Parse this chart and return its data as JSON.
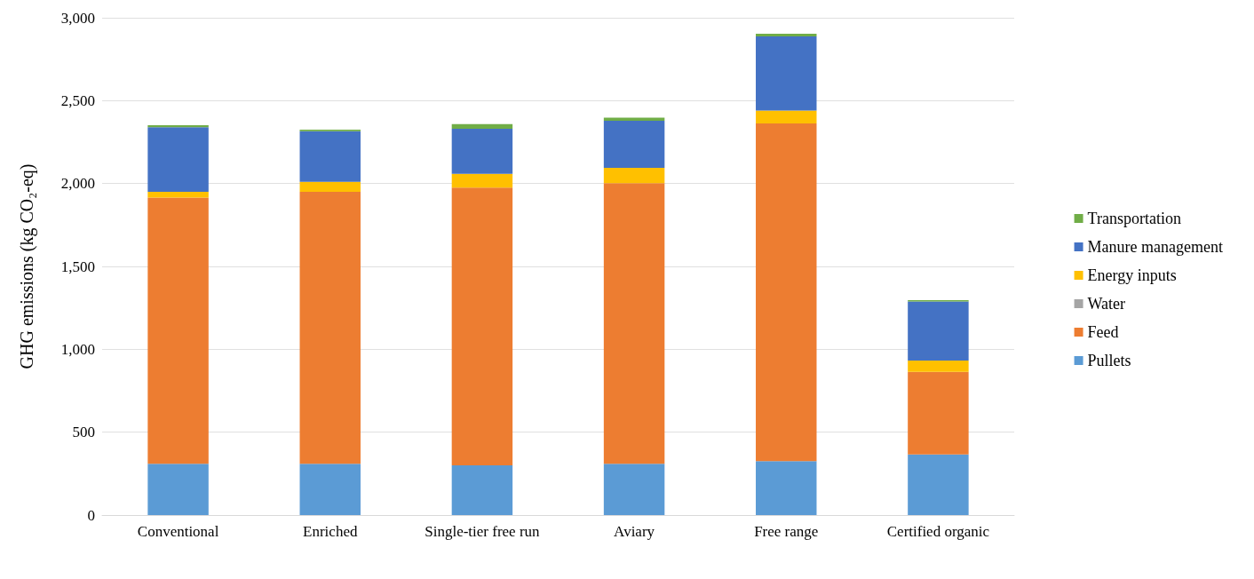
{
  "chart_data": {
    "type": "bar",
    "stacked": true,
    "ylabel": "GHG emissions (kg CO₂-eq)",
    "categories": [
      "Conventional",
      "Enriched",
      "Single-tier free run",
      "Aviary",
      "Free range",
      "Certified organic"
    ],
    "series": [
      {
        "name": "Pullets",
        "color": "#5b9bd5",
        "values": [
          310,
          310,
          300,
          310,
          325,
          365
        ]
      },
      {
        "name": "Feed",
        "color": "#ed7d31",
        "values": [
          1605,
          1640,
          1675,
          1692,
          2037,
          499
        ]
      },
      {
        "name": "Water",
        "color": "#a5a5a5",
        "values": [
          null,
          null,
          null,
          null,
          null,
          null
        ]
      },
      {
        "name": "Energy inputs",
        "color": "#ffc000",
        "values": [
          35,
          60,
          83,
          93,
          78,
          68
        ]
      },
      {
        "name": "Manure management",
        "color": "#4472c4",
        "values": [
          390,
          305,
          273,
          284,
          447,
          356
        ]
      },
      {
        "name": "Transportation",
        "color": "#70ad47",
        "values": [
          12,
          10,
          27,
          18,
          16,
          8
        ]
      }
    ],
    "ylim": [
      0,
      3000
    ],
    "yticks": [
      0,
      500,
      {
        "value": 1000,
        "label": "1,000"
      },
      {
        "value": 1500,
        "label": "1,500"
      },
      {
        "value": 2000,
        "label": "2,000"
      },
      {
        "value": 2500,
        "label": "2,500"
      },
      {
        "value": 3000,
        "label": "3,000"
      }
    ],
    "grid": "y",
    "legend": "right"
  }
}
